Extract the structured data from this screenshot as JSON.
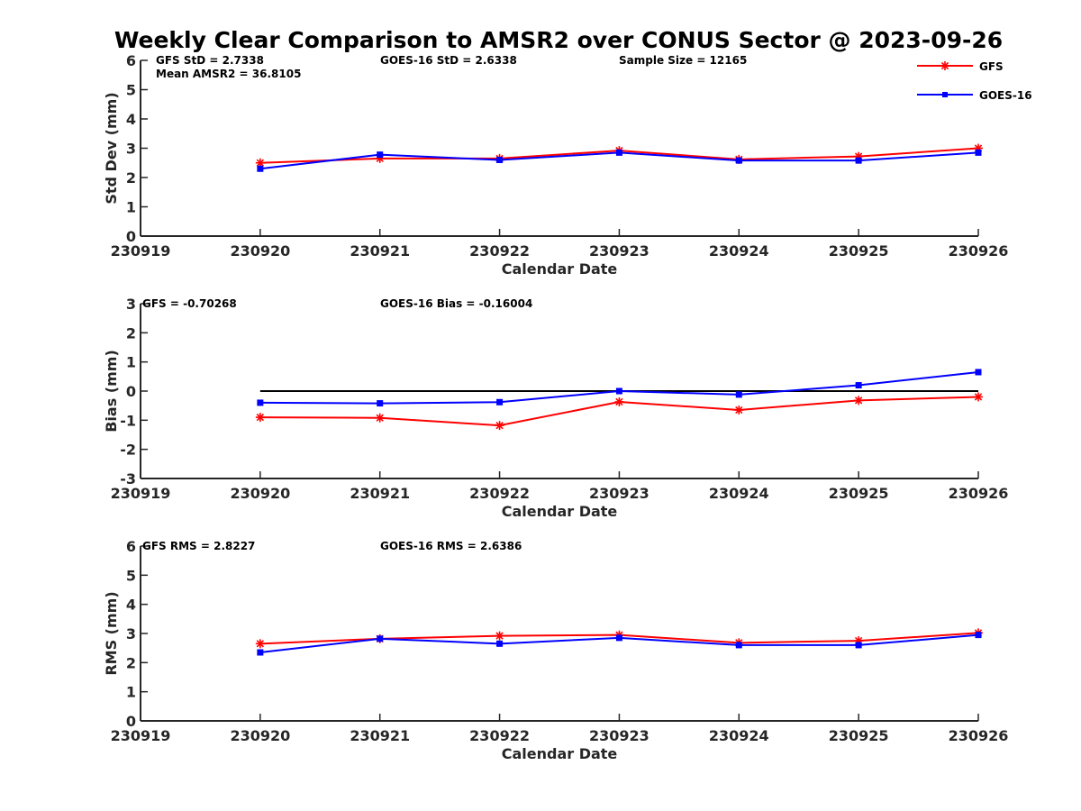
{
  "title": "Weekly Clear Comparison to AMSR2 over CONUS Sector @ 2023-09-26",
  "legend": {
    "placement": "top-right",
    "entries": [
      {
        "name": "GFS",
        "color": "#ff0000",
        "marker": "asterisk"
      },
      {
        "name": "GOES-16",
        "color": "#0000ff",
        "marker": "square"
      }
    ]
  },
  "chart_data": [
    {
      "type": "line",
      "ylabel": "Std Dev (mm)",
      "xlabel": "Calendar Date",
      "x_ticks": [
        "230919",
        "230920",
        "230921",
        "230922",
        "230923",
        "230924",
        "230925",
        "230926"
      ],
      "ylim": [
        0,
        6
      ],
      "y_ticks": [
        "0",
        "1",
        "2",
        "3",
        "4",
        "5",
        "6"
      ],
      "annotations": [
        "GFS StD = 2.7338",
        "GOES-16 StD = 2.6338",
        "Sample Size = 12165",
        "Mean AMSR2 = 36.8105"
      ],
      "series": [
        {
          "name": "GFS",
          "color": "#ff0000",
          "values": [
            2.5,
            2.65,
            2.65,
            2.92,
            2.62,
            2.72,
            3.0
          ]
        },
        {
          "name": "GOES-16",
          "color": "#0000ff",
          "values": [
            2.3,
            2.78,
            2.6,
            2.85,
            2.58,
            2.58,
            2.85
          ]
        }
      ]
    },
    {
      "type": "line",
      "ylabel": "Bias (mm)",
      "xlabel": "Calendar Date",
      "x_ticks": [
        "230919",
        "230920",
        "230921",
        "230922",
        "230923",
        "230924",
        "230925",
        "230926"
      ],
      "ylim": [
        -3,
        3
      ],
      "y_ticks": [
        "-3",
        "-2",
        "-1",
        "0",
        "1",
        "2",
        "3"
      ],
      "annotations": [
        "GFS = -0.70268",
        "GOES-16 Bias  = -0.16004"
      ],
      "zero_line": true,
      "series": [
        {
          "name": "GFS",
          "color": "#ff0000",
          "values": [
            -0.9,
            -0.92,
            -1.18,
            -0.37,
            -0.65,
            -0.32,
            -0.2
          ]
        },
        {
          "name": "GOES-16",
          "color": "#0000ff",
          "values": [
            -0.4,
            -0.42,
            -0.38,
            0.0,
            -0.12,
            0.2,
            0.65
          ]
        }
      ]
    },
    {
      "type": "line",
      "ylabel": "RMS (mm)",
      "xlabel": "Calendar Date",
      "x_ticks": [
        "230919",
        "230920",
        "230921",
        "230922",
        "230923",
        "230924",
        "230925",
        "230926"
      ],
      "ylim": [
        0,
        6
      ],
      "y_ticks": [
        "0",
        "1",
        "2",
        "3",
        "4",
        "5",
        "6"
      ],
      "annotations": [
        "GFS RMS = 2.8227",
        "GOES-16 RMS = 2.6386"
      ],
      "series": [
        {
          "name": "GFS",
          "color": "#ff0000",
          "values": [
            2.65,
            2.82,
            2.92,
            2.95,
            2.68,
            2.75,
            3.02
          ]
        },
        {
          "name": "GOES-16",
          "color": "#0000ff",
          "values": [
            2.35,
            2.82,
            2.65,
            2.85,
            2.6,
            2.6,
            2.95
          ]
        }
      ]
    }
  ]
}
